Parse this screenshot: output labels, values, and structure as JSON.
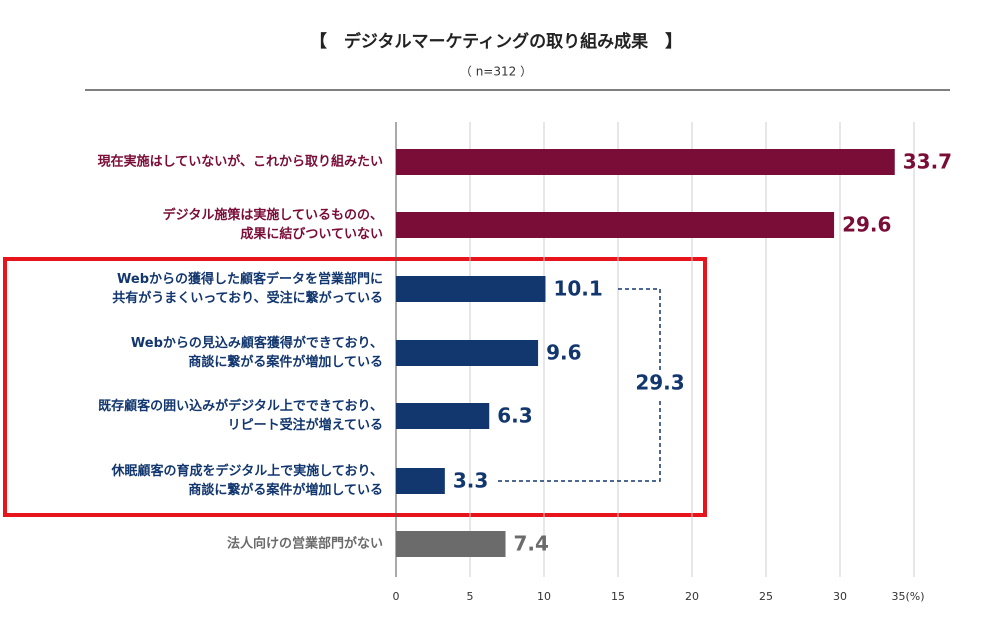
{
  "chart_data": {
    "type": "bar",
    "orientation": "horizontal",
    "title": "【　デジタルマーケティングの取り組み成果　】",
    "subtitle": "（ n=312 ）",
    "categories": [
      [
        "現在実施はしていないが、これから取り組みたい"
      ],
      [
        "デジタル施策は実施しているものの、",
        "成果に結びついていない"
      ],
      [
        "Webからの獲得した顧客データを営業部門に",
        "共有がうまくいっており、受注に繋がっている"
      ],
      [
        "Webからの見込み顧客獲得ができており、",
        "商談に繋がる案件が増加している"
      ],
      [
        "既存顧客の囲い込みがデジタル上でできており、",
        "リピート受注が増えている"
      ],
      [
        "休眠顧客の育成をデジタル上で実施しており、",
        "商談に繋がる案件が増加している"
      ],
      [
        "法人向けの営業部門がない"
      ]
    ],
    "values": [
      33.7,
      29.6,
      10.1,
      9.6,
      6.3,
      3.3,
      7.4
    ],
    "colors": [
      "#7a0d37",
      "#7a0d37",
      "#12366e",
      "#12366e",
      "#12366e",
      "#12366e",
      "#6b6b6b"
    ],
    "annotation": "29.3",
    "xlim": [
      0,
      35
    ],
    "xticks": [
      0,
      5,
      10,
      15,
      20,
      25,
      30,
      {
        "value": 35,
        "label": "35(%)"
      }
    ],
    "grid": true
  }
}
